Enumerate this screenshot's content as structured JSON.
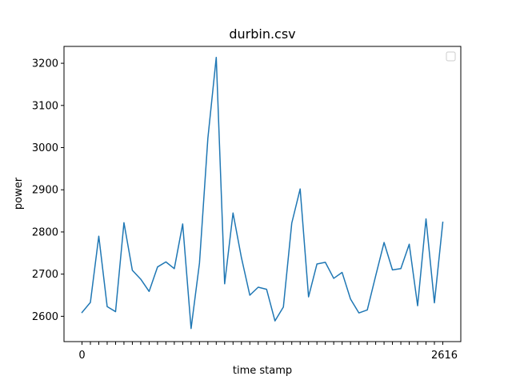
{
  "chart_data": {
    "type": "line",
    "title": "durbin.csv",
    "xlabel": "time stamp",
    "ylabel": "power",
    "ylim": [
      2540,
      3240
    ],
    "yticks": [
      2600,
      2700,
      2800,
      2900,
      3000,
      3100,
      3200
    ],
    "xtick_first": "0",
    "xtick_last": "2616",
    "x_count": 44,
    "legend": {
      "placement": "top-right",
      "entries": []
    },
    "series": [
      {
        "color": "#1f77b4",
        "values": [
          2609,
          2633,
          2790,
          2623,
          2611,
          2822,
          2709,
          2688,
          2659,
          2717,
          2729,
          2713,
          2819,
          2571,
          2726,
          3022,
          3214,
          2677,
          2845,
          2739,
          2650,
          2669,
          2664,
          2589,
          2622,
          2821,
          2902,
          2646,
          2724,
          2728,
          2690,
          2704,
          2641,
          2608,
          2615,
          2696,
          2775,
          2710,
          2713,
          2771,
          2625,
          2831,
          2632,
          2823
        ]
      }
    ]
  }
}
